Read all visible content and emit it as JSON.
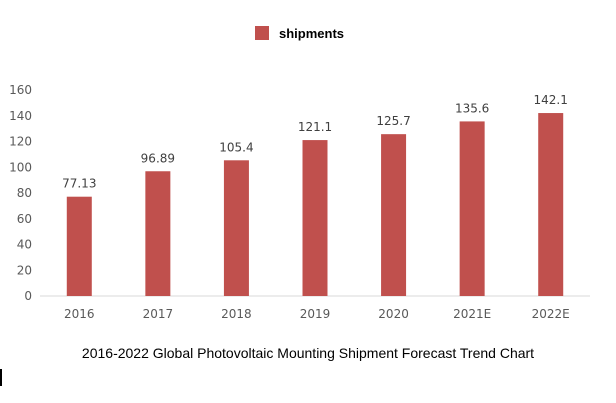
{
  "chart_data": {
    "type": "bar",
    "title": "2016-2022 Global Photovoltaic Mounting Shipment Forecast Trend Chart",
    "categories": [
      "2016",
      "2017",
      "2018",
      "2019",
      "2020",
      "2021E",
      "2022E"
    ],
    "series": [
      {
        "name": "shipments",
        "values": [
          77.13,
          96.89,
          105.4,
          121.1,
          125.7,
          135.6,
          142.1
        ],
        "labels": [
          "77.13",
          "96.89",
          "105.4",
          "121.1",
          "125.7",
          "135.6",
          "142.1"
        ],
        "color": "#c0504d"
      }
    ],
    "ylim": [
      0,
      160
    ],
    "yticks": [
      "0",
      "20",
      "40",
      "60",
      "80",
      "100",
      "120",
      "140",
      "160"
    ],
    "grid": false,
    "legend": "top-center"
  }
}
